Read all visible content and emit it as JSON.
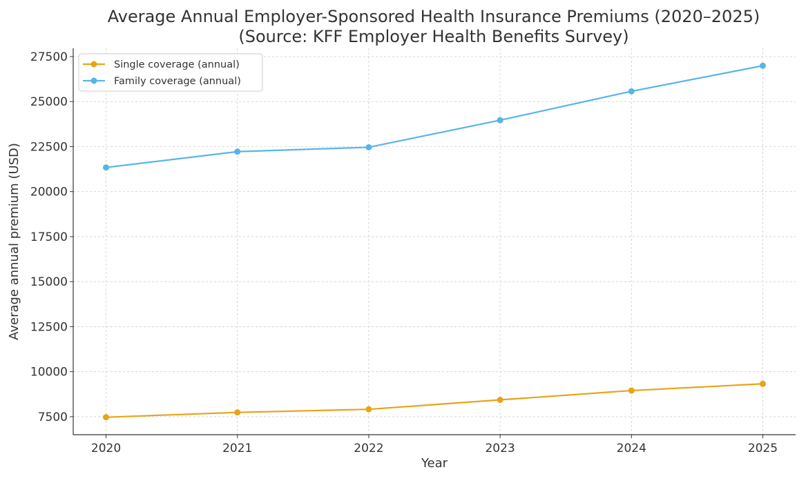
{
  "chart_data": {
    "type": "line",
    "title": "Average Annual Employer-Sponsored Health Insurance Premiums (2020–2025)",
    "subtitle": "(Source: KFF Employer Health Benefits Survey)",
    "xlabel": "Year",
    "ylabel": "Average annual premium (USD)",
    "x": [
      2020,
      2021,
      2022,
      2023,
      2024,
      2025
    ],
    "x_tick_labels": [
      "2020",
      "2021",
      "2022",
      "2023",
      "2024",
      "2025"
    ],
    "y_ticks": [
      7500,
      10000,
      12500,
      15000,
      17500,
      20000,
      22500,
      25000,
      27500
    ],
    "y_tick_labels": [
      "7500",
      "10000",
      "12500",
      "15000",
      "17500",
      "20000",
      "22500",
      "25000",
      "27500"
    ],
    "xlim": [
      2019.75,
      2025.25
    ],
    "ylim": [
      6500,
      27960
    ],
    "grid": true,
    "legend_position": "top-left",
    "series": [
      {
        "name": "Single coverage (annual)",
        "color": "#E8A317",
        "values": [
          7470,
          7739,
          7911,
          8435,
          8951,
          9325
        ]
      },
      {
        "name": "Family coverage (annual)",
        "color": "#56B4E9",
        "values": [
          21342,
          22221,
          22463,
          23968,
          25572,
          26993
        ]
      }
    ]
  }
}
